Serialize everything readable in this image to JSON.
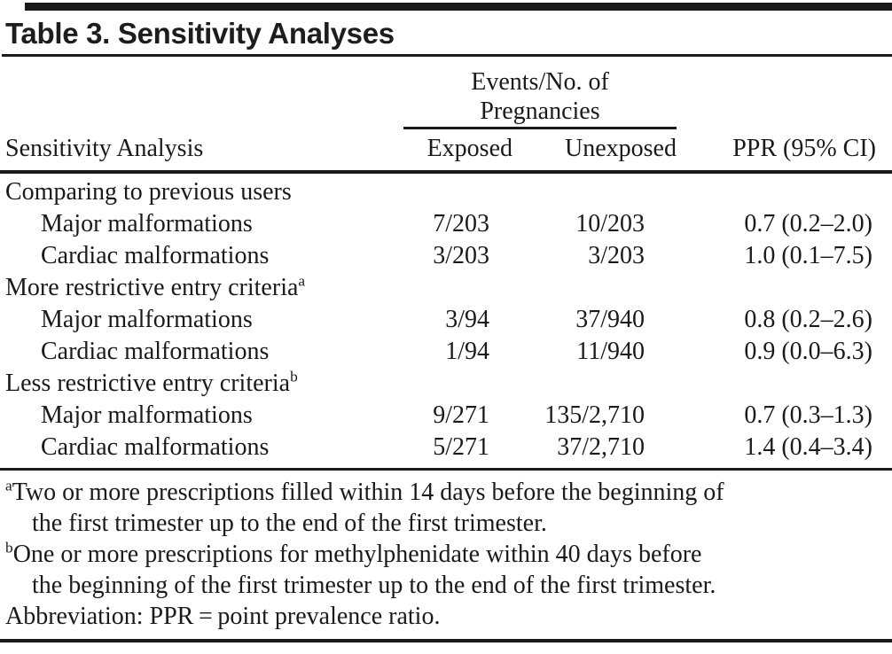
{
  "title": "Table 3. Sensitivity Analyses",
  "colors": {
    "ink": "#1a1a1a"
  },
  "table": {
    "spanner": {
      "line1": "Events/No. of",
      "line2": "Pregnancies"
    },
    "columns": [
      "Sensitivity Analysis",
      "Exposed",
      "Unexposed",
      "PPR (95% CI)"
    ],
    "rows": [
      {
        "label": "Comparing to previous users",
        "indent": false,
        "sup": "",
        "exposed": "",
        "unexposed": "",
        "ppr": ""
      },
      {
        "label": "Major malformations",
        "indent": true,
        "sup": "",
        "exposed": "7/203",
        "unexposed": "10/203",
        "ppr": "0.7 (0.2–2.0)"
      },
      {
        "label": "Cardiac malformations",
        "indent": true,
        "sup": "",
        "exposed": "3/203",
        "unexposed": "3/203",
        "ppr": "1.0 (0.1–7.5)"
      },
      {
        "label": "More restrictive entry criteria",
        "indent": false,
        "sup": "a",
        "exposed": "",
        "unexposed": "",
        "ppr": ""
      },
      {
        "label": "Major malformations",
        "indent": true,
        "sup": "",
        "exposed": "3/94",
        "unexposed": "37/940",
        "ppr": "0.8 (0.2–2.6)"
      },
      {
        "label": "Cardiac malformations",
        "indent": true,
        "sup": "",
        "exposed": "1/94",
        "unexposed": "11/940",
        "ppr": "0.9 (0.0–6.3)"
      },
      {
        "label": "Less restrictive entry criteria",
        "indent": false,
        "sup": "b",
        "exposed": "",
        "unexposed": "",
        "ppr": ""
      },
      {
        "label": "Major malformations",
        "indent": true,
        "sup": "",
        "exposed": "9/271",
        "unexposed": "135/2,710",
        "ppr": "0.7 (0.3–1.3)"
      },
      {
        "label": "Cardiac malformations",
        "indent": true,
        "sup": "",
        "exposed": "5/271",
        "unexposed": "37/2,710",
        "ppr": "1.4 (0.4–3.4)"
      }
    ]
  },
  "footnotes": [
    {
      "marker": "a",
      "lines": [
        "Two or more prescriptions filled within 14 days before the beginning of",
        "the first trimester up to the end of the first trimester."
      ]
    },
    {
      "marker": "b",
      "lines": [
        "One or more prescriptions for methylphenidate within 40 days before",
        "the beginning of the first trimester up to the end of the first trimester."
      ]
    },
    {
      "marker": "",
      "lines": [
        "Abbreviation: PPR = point prevalence ratio."
      ]
    }
  ]
}
